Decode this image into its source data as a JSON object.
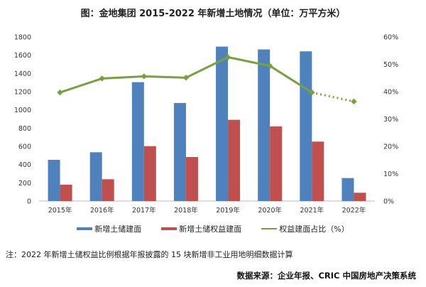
{
  "title": "图：金地集团 2015-2022 年新增土地情况（单位：万平方米）",
  "chart_data": {
    "type": "bar",
    "title": "图：金地集团 2015-2022 年新增土地情况（单位：万平方米）",
    "categories": [
      "2015年",
      "2016年",
      "2017年",
      "2018年",
      "2019年",
      "2020年",
      "2021年",
      "2022年"
    ],
    "series": [
      {
        "name": "新增土储建面",
        "type": "bar",
        "axis": "left",
        "color": "#4f81bd",
        "values": [
          452,
          535,
          1304,
          1075,
          1694,
          1663,
          1642,
          252
        ]
      },
      {
        "name": "新增土储权益建面",
        "type": "bar",
        "axis": "left",
        "color": "#c0504d",
        "values": [
          179,
          239,
          602,
          483,
          891,
          818,
          652,
          91
        ]
      },
      {
        "name": "权益建面占比（%）",
        "type": "line",
        "axis": "right",
        "color": "#77a043",
        "values": [
          39.7,
          44.8,
          45.6,
          45.1,
          52.6,
          49.4,
          39.7,
          36.4
        ],
        "dashed_last_segment": true
      }
    ],
    "ylim": [
      0,
      1800
    ],
    "yticks": [
      "0",
      "200",
      "400",
      "600",
      "800",
      "1000",
      "1200",
      "1400",
      "1600",
      "1800"
    ],
    "y2lim": [
      0,
      60
    ],
    "y2ticks": [
      "0%",
      "10%",
      "20%",
      "30%",
      "40%",
      "50%",
      "60%"
    ],
    "grid": false,
    "legend": "bottom"
  },
  "note": "注：2022 年新增土储权益比例根据年报披露的 15 块新增非工业用地明细数据计算",
  "source": "数据来源：企业年报、CRIC 中国房地产决策系统"
}
